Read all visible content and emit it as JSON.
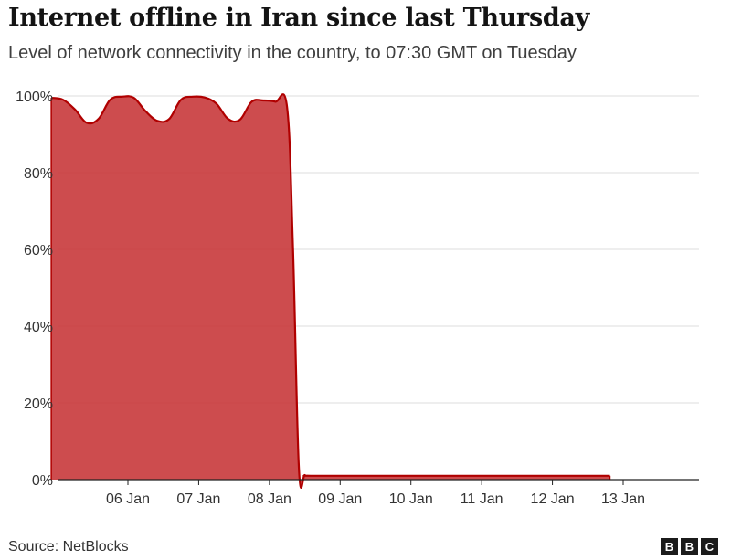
{
  "chart_data": {
    "type": "area",
    "title": "Internet offline in Iran since last Thursday",
    "subtitle": "Level of network connectivity in the country, to 07:30 GMT on Tuesday",
    "xlabel": "",
    "ylabel": "",
    "ylim": [
      0,
      100
    ],
    "y_ticks": [
      0,
      20,
      40,
      60,
      80,
      100
    ],
    "y_tick_labels": [
      "0%",
      "20%",
      "40%",
      "60%",
      "80%",
      "100%"
    ],
    "x_ticks": [
      "06 Jan",
      "07 Jan",
      "08 Jan",
      "09 Jan",
      "10 Jan",
      "11 Jan",
      "12 Jan",
      "13 Jan"
    ],
    "grid": true,
    "color": "#c8393b",
    "series": [
      {
        "x": [
          "05 Jan 10:00",
          "05 Jan 14:00",
          "05 Jan 18:00",
          "05 Jan 22:00",
          "06 Jan 02:00",
          "06 Jan 06:00",
          "06 Jan 10:00",
          "06 Jan 14:00",
          "06 Jan 18:00",
          "06 Jan 22:00",
          "07 Jan 02:00",
          "07 Jan 06:00",
          "07 Jan 10:00",
          "07 Jan 14:00",
          "07 Jan 18:00",
          "07 Jan 22:00",
          "08 Jan 02:00",
          "08 Jan 06:00",
          "08 Jan 10:00",
          "08 Jan 14:00",
          "08 Jan 18:00",
          "08 Jan 20:00",
          "08 Jan 22:00",
          "09 Jan 00:00",
          "09 Jan 02:00",
          "10 Jan 00:00",
          "11 Jan 00:00",
          "12 Jan 00:00",
          "13 Jan 00:00",
          "13 Jan 07:30"
        ],
        "values": [
          99.5,
          99.0,
          96.5,
          93.0,
          94.0,
          99.0,
          99.8,
          99.5,
          96.0,
          93.5,
          94.0,
          99.0,
          99.8,
          99.6,
          98.0,
          94.0,
          93.8,
          98.5,
          98.8,
          98.5,
          97.0,
          60.0,
          3.0,
          1.2,
          1.0,
          1.0,
          1.0,
          1.0,
          1.0,
          1.0
        ]
      }
    ]
  },
  "footer": {
    "source": "Source: NetBlocks",
    "logo": [
      "B",
      "B",
      "C"
    ]
  }
}
